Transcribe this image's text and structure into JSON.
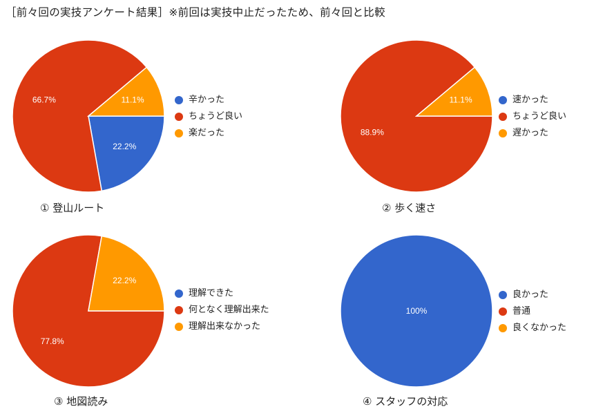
{
  "page": {
    "title": "［前々回の実技アンケート結果］※前回は実技中止だったため、前々回と比較"
  },
  "colors": {
    "blue": "#3366cc",
    "red": "#dc3912",
    "orange": "#ff9900"
  },
  "chart_data": [
    {
      "type": "pie",
      "title": "①  登山ルート",
      "categories": [
        "辛かった",
        "ちょうど良い",
        "楽だった"
      ],
      "values": [
        22.2,
        66.7,
        11.1
      ],
      "labels": [
        "22.2%",
        "66.7%",
        "11.1%"
      ],
      "colors": [
        "#3366cc",
        "#dc3912",
        "#ff9900"
      ],
      "legend": "right"
    },
    {
      "type": "pie",
      "title": "②  歩く速さ",
      "categories": [
        "速かった",
        "ちょうど良い",
        "遅かった"
      ],
      "values": [
        0,
        88.9,
        11.1
      ],
      "labels": [
        "",
        "88.9%",
        "11.1%"
      ],
      "colors": [
        "#3366cc",
        "#dc3912",
        "#ff9900"
      ],
      "legend": "right"
    },
    {
      "type": "pie",
      "title": "③  地図読み",
      "categories": [
        "理解できた",
        "何となく理解出来た",
        "理解出来なかった"
      ],
      "values": [
        0,
        77.8,
        22.2
      ],
      "labels": [
        "",
        "77.8%",
        "22.2%"
      ],
      "colors": [
        "#3366cc",
        "#dc3912",
        "#ff9900"
      ],
      "legend": "right"
    },
    {
      "type": "pie",
      "title": "④  スタッフの対応",
      "categories": [
        "良かった",
        "普通",
        "良くなかった"
      ],
      "values": [
        100,
        0,
        0
      ],
      "labels": [
        "100%",
        "",
        ""
      ],
      "colors": [
        "#3366cc",
        "#dc3912",
        "#ff9900"
      ],
      "legend": "right"
    }
  ]
}
